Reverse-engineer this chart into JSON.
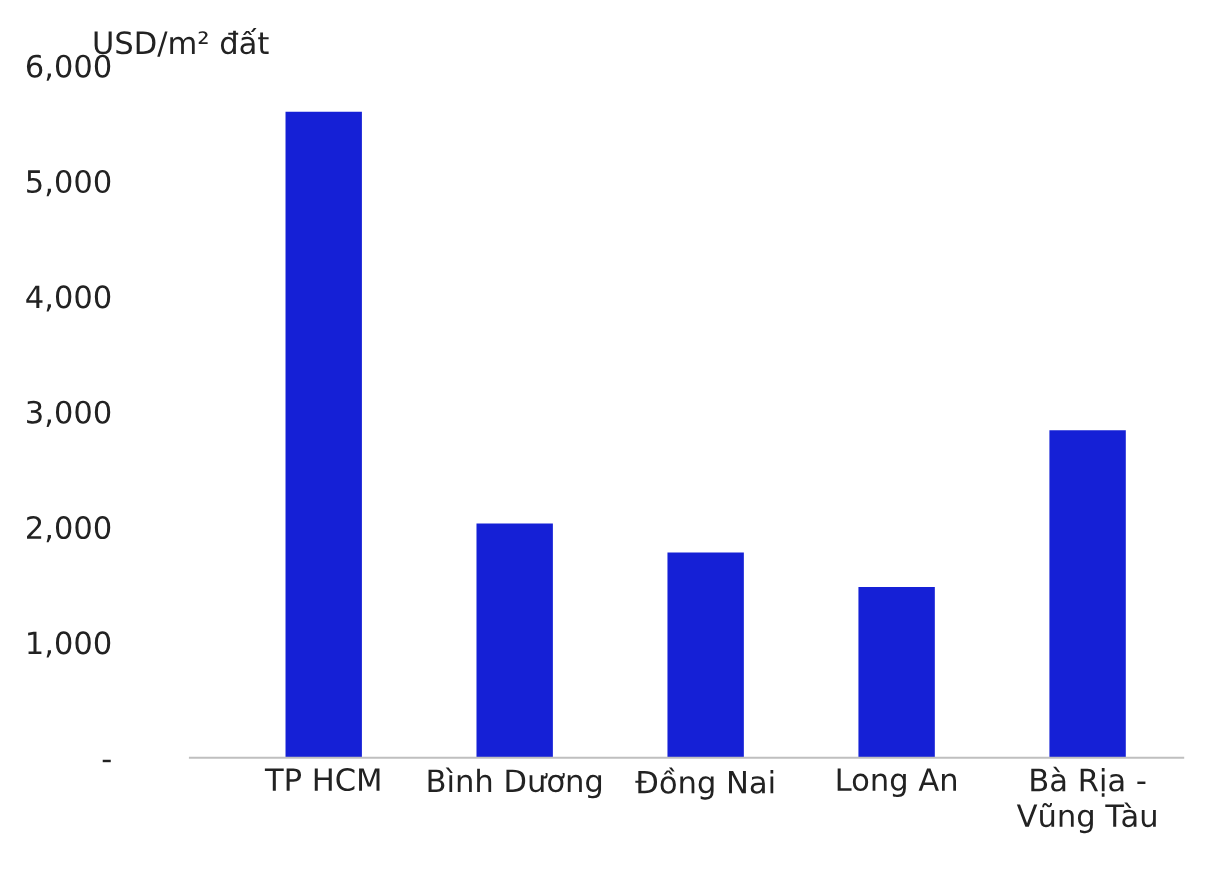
{
  "chart_data": {
    "type": "bar",
    "ylabel": "USD/m² đất",
    "categories": [
      "TP HCM",
      "Bình Dương",
      "Đồng Nai",
      "Long An",
      "Bà Rịa -\nVũng Tàu"
    ],
    "values": [
      5600,
      2030,
      1780,
      1480,
      2840
    ],
    "color": "#1520d6",
    "ylim": [
      0,
      6000
    ],
    "yticks": [
      {
        "value": 0,
        "label": "-"
      },
      {
        "value": 1000,
        "label": "1,000"
      },
      {
        "value": 2000,
        "label": "2,000"
      },
      {
        "value": 3000,
        "label": "3,000"
      },
      {
        "value": 4000,
        "label": "4,000"
      },
      {
        "value": 5000,
        "label": "5,000"
      },
      {
        "value": 6000,
        "label": "6,000"
      }
    ],
    "grid": false,
    "legend": false
  }
}
